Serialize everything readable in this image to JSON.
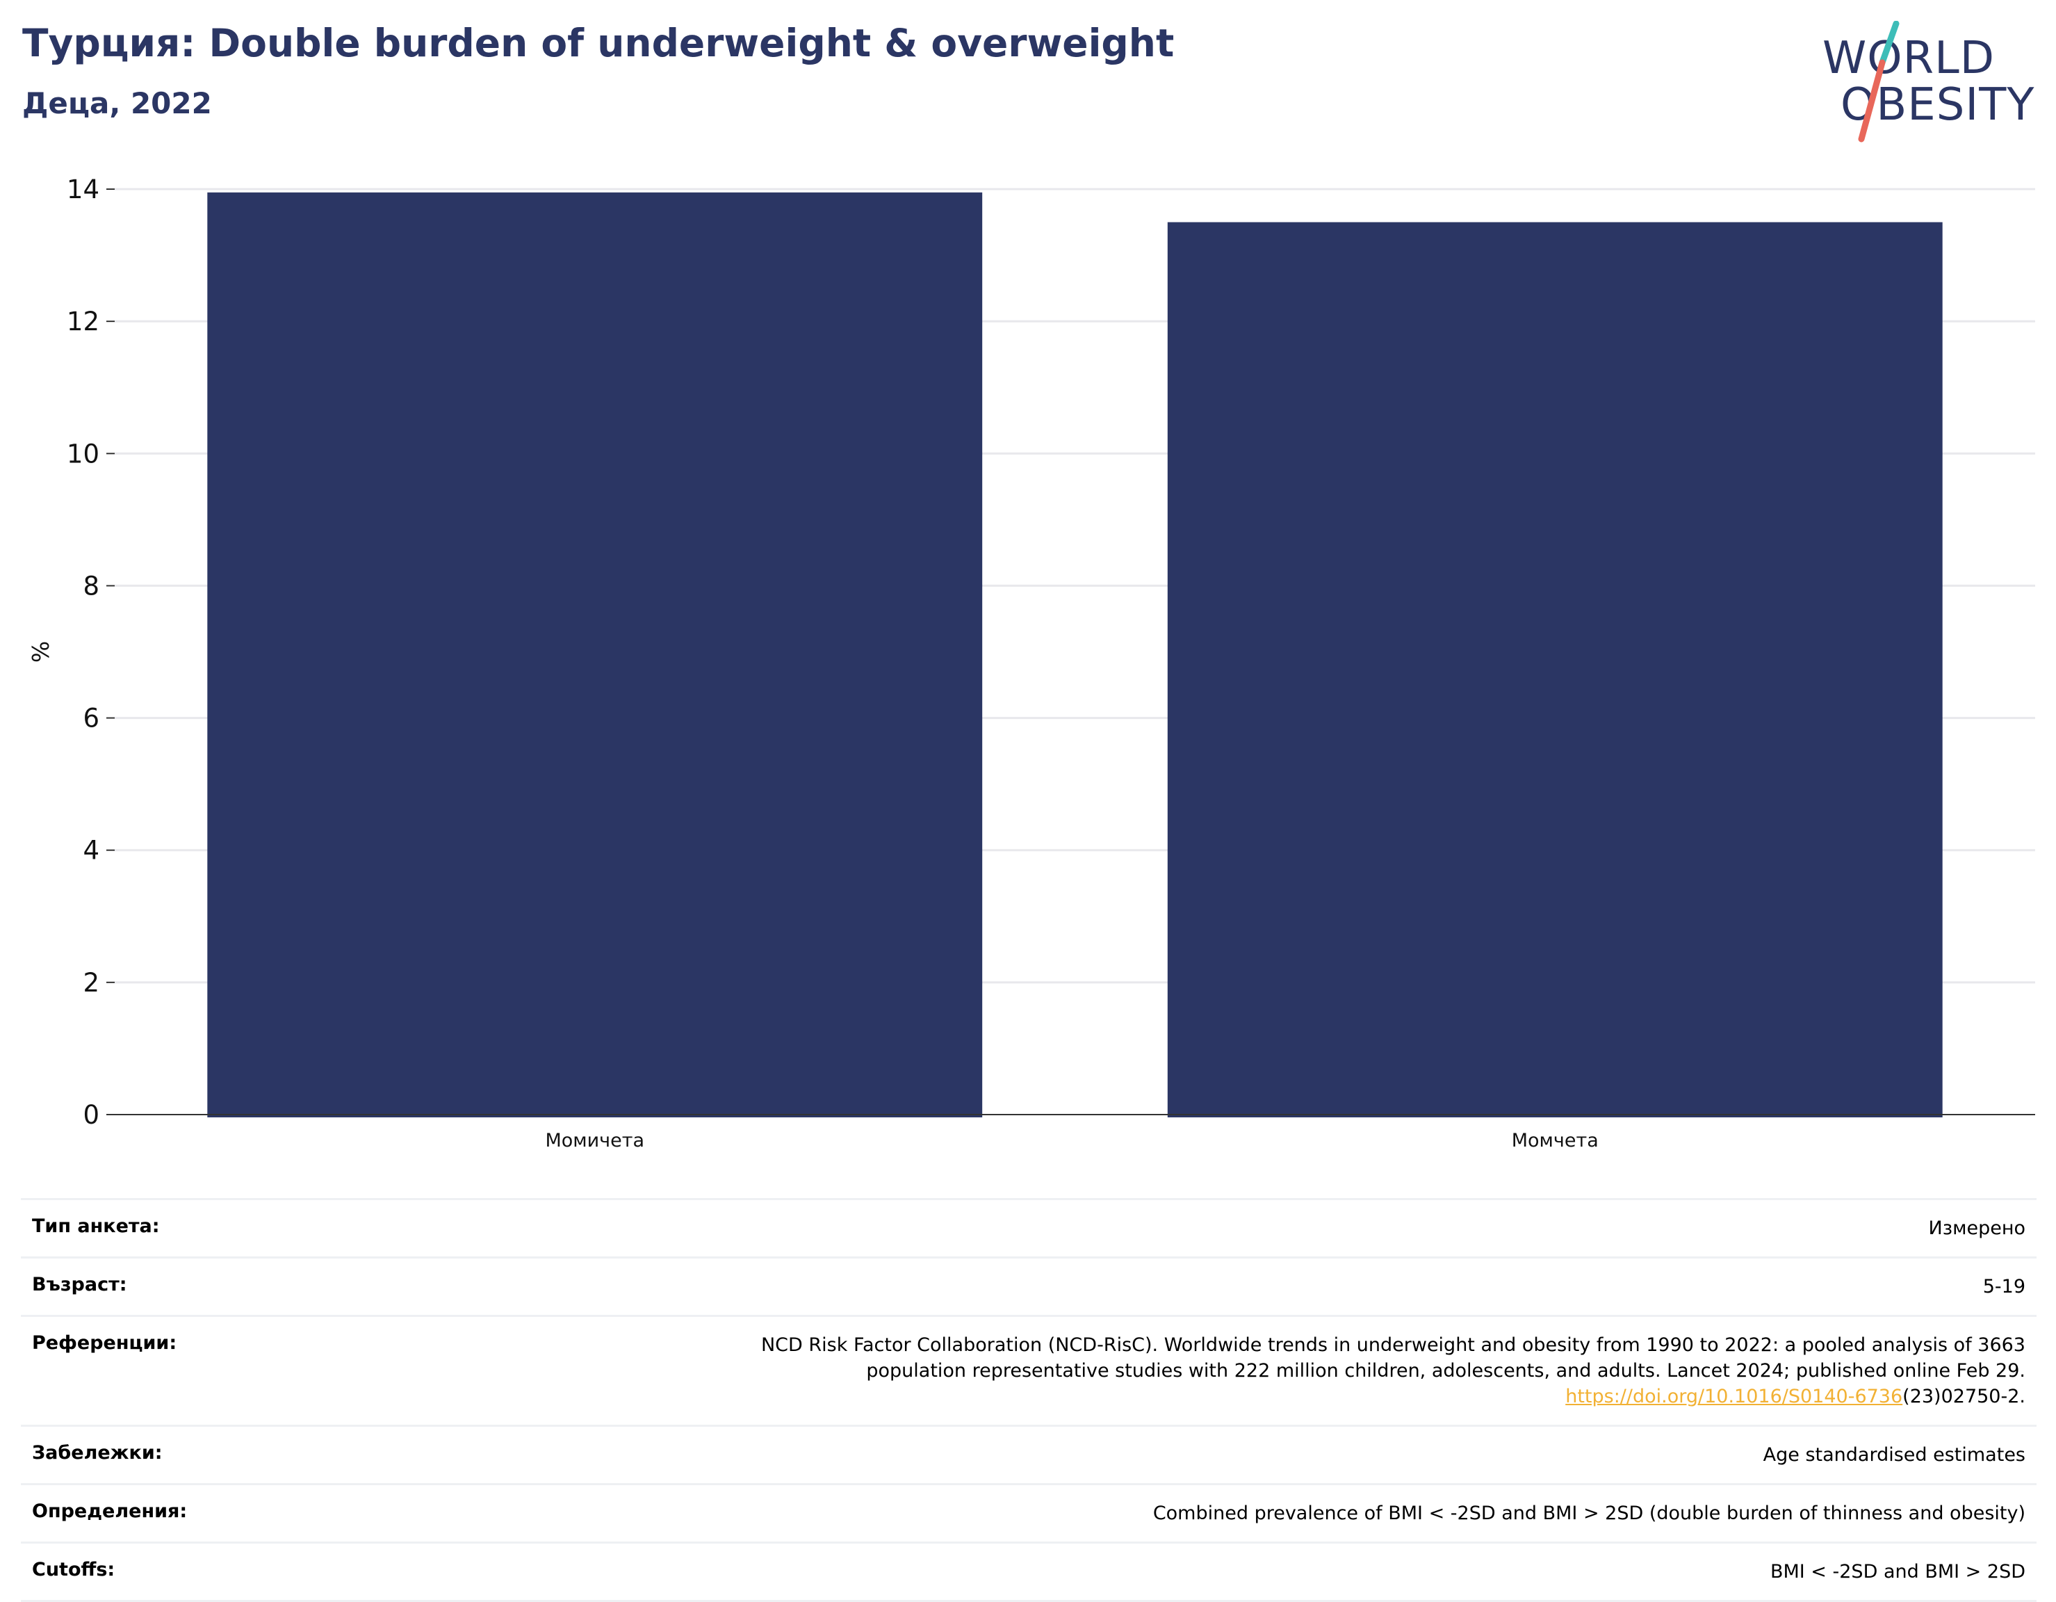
{
  "header": {
    "title": "Турция: Double burden of underweight & overweight",
    "subtitle": "Деца, 2022"
  },
  "logo": {
    "line1": "WORLD",
    "line2": "OBESITY",
    "colors": {
      "text": "#2b3664",
      "slash_top": "#3dbdb8",
      "slash_bottom": "#e8675a"
    }
  },
  "chart_data": {
    "type": "bar",
    "categories": [
      "Момичета",
      "Момчета"
    ],
    "values": [
      13.95,
      13.5
    ],
    "ylabel": "%",
    "xlabel": "",
    "ylim": [
      0,
      14
    ],
    "yticks": [
      0,
      2,
      4,
      6,
      8,
      10,
      12,
      14
    ],
    "grid": true,
    "bar_color": "#2b3664"
  },
  "meta": [
    {
      "key": "Тип анкета:",
      "value": "Измерено"
    },
    {
      "key": "Възраст:",
      "value": "5-19"
    },
    {
      "key": "Референции:",
      "value_lines": [
        "NCD Risk Factor Collaboration (NCD-RisC). Worldwide trends in underweight and obesity from 1990 to 2022: a pooled analysis of 3663",
        "population representative studies with 222 million children, adolescents, and adults. Lancet 2024; published online Feb 29."
      ],
      "link": "https://doi.org/10.1016/S0140-6736",
      "link_suffix": "(23)02750-2."
    },
    {
      "key": "Забележки:",
      "value": "Age standardised estimates"
    },
    {
      "key": "Определения:",
      "value": "Combined prevalence of BMI < -2SD and BMI > 2SD (double burden of thinness and obesity)"
    },
    {
      "key": "Cutoffs:",
      "value": "BMI < -2SD and BMI > 2SD"
    }
  ]
}
